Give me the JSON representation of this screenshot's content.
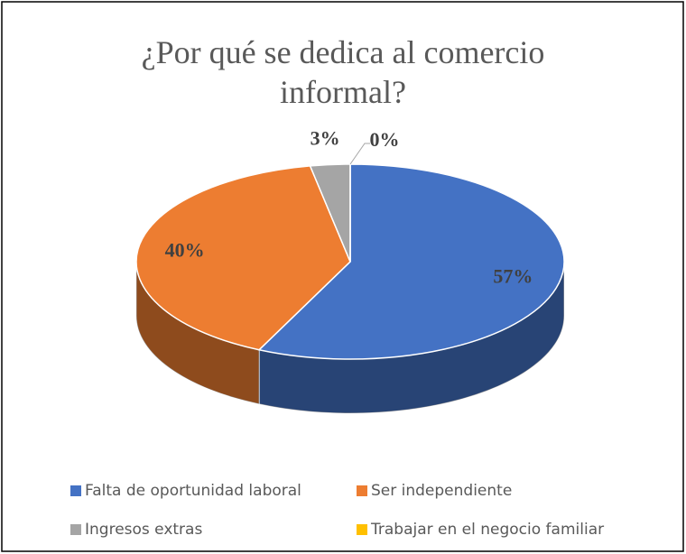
{
  "chart_data": {
    "type": "pie",
    "title": "¿Por qué se dedica al comercio informal?",
    "categories": [
      "Falta de oportunidad laboral",
      "Ser independiente",
      "Ingresos extras",
      "Trabajar en el negocio familiar"
    ],
    "values": [
      57,
      40,
      3,
      0
    ],
    "value_labels": [
      "57%",
      "40%",
      "3%",
      "0%"
    ],
    "colors": [
      "#4472c4",
      "#ed7d31",
      "#a5a5a5",
      "#ffc000"
    ],
    "legend": "bottom"
  }
}
